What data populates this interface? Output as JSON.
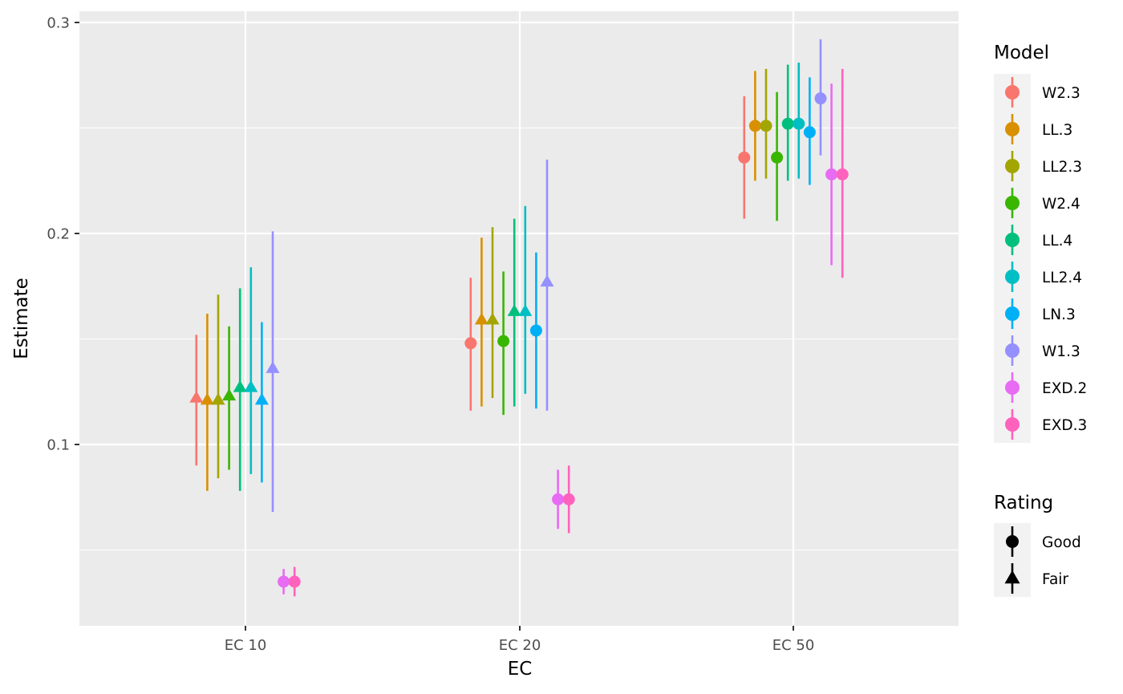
{
  "chart_data": {
    "type": "scatter",
    "xlabel": "EC",
    "ylabel": "Estimate",
    "categories": [
      "EC 10",
      "EC 20",
      "EC 50"
    ],
    "ylim": [
      0.015,
      0.305
    ],
    "yticks": [
      0.1,
      0.2,
      0.3
    ],
    "yminor": [
      0.05,
      0.15,
      0.25
    ],
    "yticklabels": [
      "0.1",
      "0.2",
      "0.3"
    ],
    "grid": true,
    "legend_placement": "right",
    "legends": {
      "model": {
        "title": "Model",
        "entries": [
          "W2.3",
          "LL.3",
          "LL2.3",
          "W2.4",
          "LL.4",
          "LL2.4",
          "LN.3",
          "W1.3",
          "EXD.2",
          "EXD.3"
        ]
      },
      "rating": {
        "title": "Rating",
        "entries": [
          {
            "label": "Good",
            "shape": "circle"
          },
          {
            "label": "Fair",
            "shape": "triangle"
          }
        ]
      }
    },
    "colors": {
      "W2.3": "#F8766D",
      "LL.3": "#D89000",
      "LL2.3": "#A3A500",
      "W2.4": "#39B600",
      "LL.4": "#00BF7D",
      "LL2.4": "#00BFC4",
      "LN.3": "#00B0F6",
      "W1.3": "#9590FF",
      "EXD.2": "#E76BF3",
      "EXD.3": "#FF62BC",
      "panel": "#EBEBEB",
      "grid": "#FFFFFF"
    },
    "series": [
      {
        "model": "W2.3",
        "points": [
          {
            "ec": "EC 10",
            "estimate": 0.122,
            "lower": 0.09,
            "upper": 0.152,
            "rating": "Fair"
          },
          {
            "ec": "EC 20",
            "estimate": 0.148,
            "lower": 0.116,
            "upper": 0.179,
            "rating": "Good"
          },
          {
            "ec": "EC 50",
            "estimate": 0.236,
            "lower": 0.207,
            "upper": 0.265,
            "rating": "Good"
          }
        ]
      },
      {
        "model": "LL.3",
        "points": [
          {
            "ec": "EC 10",
            "estimate": 0.121,
            "lower": 0.078,
            "upper": 0.162,
            "rating": "Fair"
          },
          {
            "ec": "EC 20",
            "estimate": 0.159,
            "lower": 0.118,
            "upper": 0.198,
            "rating": "Fair"
          },
          {
            "ec": "EC 50",
            "estimate": 0.251,
            "lower": 0.225,
            "upper": 0.277,
            "rating": "Good"
          }
        ]
      },
      {
        "model": "LL2.3",
        "points": [
          {
            "ec": "EC 10",
            "estimate": 0.121,
            "lower": 0.084,
            "upper": 0.171,
            "rating": "Fair"
          },
          {
            "ec": "EC 20",
            "estimate": 0.159,
            "lower": 0.122,
            "upper": 0.203,
            "rating": "Fair"
          },
          {
            "ec": "EC 50",
            "estimate": 0.251,
            "lower": 0.226,
            "upper": 0.278,
            "rating": "Good"
          }
        ]
      },
      {
        "model": "W2.4",
        "points": [
          {
            "ec": "EC 10",
            "estimate": 0.123,
            "lower": 0.088,
            "upper": 0.156,
            "rating": "Fair"
          },
          {
            "ec": "EC 20",
            "estimate": 0.149,
            "lower": 0.114,
            "upper": 0.182,
            "rating": "Good"
          },
          {
            "ec": "EC 50",
            "estimate": 0.236,
            "lower": 0.206,
            "upper": 0.267,
            "rating": "Good"
          }
        ]
      },
      {
        "model": "LL.4",
        "points": [
          {
            "ec": "EC 10",
            "estimate": 0.127,
            "lower": 0.078,
            "upper": 0.174,
            "rating": "Fair"
          },
          {
            "ec": "EC 20",
            "estimate": 0.163,
            "lower": 0.118,
            "upper": 0.207,
            "rating": "Fair"
          },
          {
            "ec": "EC 50",
            "estimate": 0.252,
            "lower": 0.225,
            "upper": 0.28,
            "rating": "Good"
          }
        ]
      },
      {
        "model": "LL2.4",
        "points": [
          {
            "ec": "EC 10",
            "estimate": 0.127,
            "lower": 0.086,
            "upper": 0.184,
            "rating": "Fair"
          },
          {
            "ec": "EC 20",
            "estimate": 0.163,
            "lower": 0.124,
            "upper": 0.213,
            "rating": "Fair"
          },
          {
            "ec": "EC 50",
            "estimate": 0.252,
            "lower": 0.226,
            "upper": 0.281,
            "rating": "Good"
          }
        ]
      },
      {
        "model": "LN.3",
        "points": [
          {
            "ec": "EC 10",
            "estimate": 0.121,
            "lower": 0.082,
            "upper": 0.158,
            "rating": "Fair"
          },
          {
            "ec": "EC 20",
            "estimate": 0.154,
            "lower": 0.117,
            "upper": 0.191,
            "rating": "Good"
          },
          {
            "ec": "EC 50",
            "estimate": 0.248,
            "lower": 0.223,
            "upper": 0.274,
            "rating": "Good"
          }
        ]
      },
      {
        "model": "W1.3",
        "points": [
          {
            "ec": "EC 10",
            "estimate": 0.136,
            "lower": 0.068,
            "upper": 0.201,
            "rating": "Fair"
          },
          {
            "ec": "EC 20",
            "estimate": 0.177,
            "lower": 0.116,
            "upper": 0.235,
            "rating": "Fair"
          },
          {
            "ec": "EC 50",
            "estimate": 0.264,
            "lower": 0.237,
            "upper": 0.292,
            "rating": "Good"
          }
        ]
      },
      {
        "model": "EXD.2",
        "points": [
          {
            "ec": "EC 10",
            "estimate": 0.035,
            "lower": 0.029,
            "upper": 0.041,
            "rating": "Good"
          },
          {
            "ec": "EC 20",
            "estimate": 0.074,
            "lower": 0.06,
            "upper": 0.088,
            "rating": "Good"
          },
          {
            "ec": "EC 50",
            "estimate": 0.228,
            "lower": 0.185,
            "upper": 0.271,
            "rating": "Good"
          }
        ]
      },
      {
        "model": "EXD.3",
        "points": [
          {
            "ec": "EC 10",
            "estimate": 0.035,
            "lower": 0.028,
            "upper": 0.042,
            "rating": "Good"
          },
          {
            "ec": "EC 20",
            "estimate": 0.074,
            "lower": 0.058,
            "upper": 0.09,
            "rating": "Good"
          },
          {
            "ec": "EC 50",
            "estimate": 0.228,
            "lower": 0.179,
            "upper": 0.278,
            "rating": "Good"
          }
        ]
      }
    ]
  }
}
